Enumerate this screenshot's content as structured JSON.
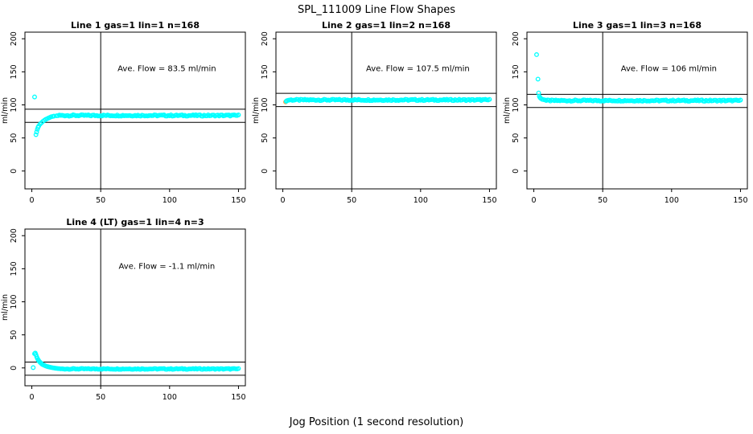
{
  "page": {
    "title": "SPL_111009  Line Flow Shapes",
    "bottom_xlabel": "Jog Position (1 second resolution)"
  },
  "style": {
    "point_color": "#00FFFF",
    "first_point_color": "#FFA040",
    "axis_color": "#000000",
    "background": "#FFFFFF"
  },
  "chart_data": [
    {
      "type": "scatter",
      "title": "Line 1 gas=1 lin=1 n=168",
      "annotation": {
        "text": "Ave. Flow =  83.5  ml/min",
        "x": 98,
        "y": 151
      },
      "ylabel": "ml/min",
      "ave_flow_ml_min": 83.5,
      "xlim": [
        -5,
        155
      ],
      "ylim": [
        -27,
        210
      ],
      "xticks": [
        0,
        50,
        100,
        150
      ],
      "yticks": [
        0,
        50,
        100,
        150,
        200
      ],
      "vline_x": 50,
      "hlines": [
        93.5,
        73.5
      ],
      "points": [
        [
          2,
          112
        ],
        [
          3,
          55
        ],
        [
          3.5,
          59
        ],
        [
          4,
          63
        ],
        [
          4.5,
          66
        ],
        [
          5,
          68
        ],
        [
          6,
          71
        ],
        [
          7,
          73
        ],
        [
          8,
          75
        ],
        [
          9,
          76.5
        ],
        [
          10,
          78
        ],
        [
          11,
          79
        ],
        [
          12,
          80
        ],
        [
          13,
          81
        ],
        [
          14,
          82
        ],
        [
          15,
          82.5
        ],
        [
          16,
          83
        ],
        [
          18,
          83.5
        ]
      ],
      "plateau": {
        "x_from": 19,
        "x_to": 150,
        "x_step": 1,
        "y": 84,
        "jitter": 2
      }
    },
    {
      "type": "scatter",
      "title": "Line 2 gas=1 lin=2 n=168",
      "annotation": {
        "text": "Ave. Flow =  107.5  ml/min",
        "x": 98,
        "y": 151
      },
      "ylabel": "ml/min",
      "ave_flow_ml_min": 107.5,
      "xlim": [
        -5,
        155
      ],
      "ylim": [
        -27,
        210
      ],
      "xticks": [
        0,
        50,
        100,
        150
      ],
      "yticks": [
        0,
        50,
        100,
        150,
        200
      ],
      "vline_x": 50,
      "hlines": [
        117.5,
        97.5
      ],
      "points": [
        [
          2,
          104.5,
          "#FFA040"
        ],
        [
          2.5,
          105.5
        ],
        [
          3,
          106.5
        ],
        [
          4,
          107
        ]
      ],
      "plateau": {
        "x_from": 5,
        "x_to": 150,
        "x_step": 1,
        "y": 107.5,
        "jitter": 2
      }
    },
    {
      "type": "scatter",
      "title": "Line 3 gas=1 lin=3 n=168",
      "annotation": {
        "text": "Ave. Flow =  106  ml/min",
        "x": 98,
        "y": 151
      },
      "ylabel": "ml/min",
      "ave_flow_ml_min": 106,
      "xlim": [
        -5,
        155
      ],
      "ylim": [
        -27,
        210
      ],
      "xticks": [
        0,
        50,
        100,
        150
      ],
      "yticks": [
        0,
        50,
        100,
        150,
        200
      ],
      "vline_x": 50,
      "hlines": [
        116,
        96
      ],
      "points": [
        [
          2,
          176
        ],
        [
          3,
          139
        ],
        [
          3.5,
          118
        ],
        [
          4,
          113
        ],
        [
          4.5,
          111
        ],
        [
          5,
          110
        ],
        [
          6,
          108.5
        ],
        [
          7,
          108
        ],
        [
          8,
          107.5
        ]
      ],
      "plateau": {
        "x_from": 9,
        "x_to": 150,
        "x_step": 1,
        "y": 106.5,
        "jitter": 2
      }
    },
    {
      "type": "scatter",
      "title": "Line 4 (LT) gas=1 lin=4 n=3",
      "annotation": {
        "text": "Ave. Flow =  -1.1  ml/min",
        "x": 98,
        "y": 150
      },
      "ylabel": "ml/min",
      "ave_flow_ml_min": -1.1,
      "xlim": [
        -5,
        155
      ],
      "ylim": [
        -27,
        210
      ],
      "xticks": [
        0,
        50,
        100,
        150
      ],
      "yticks": [
        0,
        50,
        100,
        150,
        200
      ],
      "vline_x": 50,
      "hlines": [
        8.9,
        -11.1
      ],
      "points": [
        [
          1,
          0.5
        ],
        [
          2,
          21.5
        ],
        [
          2.5,
          22.5
        ],
        [
          3,
          20
        ],
        [
          3.5,
          17
        ],
        [
          4,
          14.5
        ],
        [
          4.5,
          12.5
        ],
        [
          5,
          11
        ],
        [
          5.5,
          9.5
        ],
        [
          6,
          8.5
        ],
        [
          6.5,
          7.5
        ],
        [
          7,
          6.5
        ],
        [
          7.5,
          5.5
        ],
        [
          8,
          5
        ],
        [
          9,
          4
        ],
        [
          10,
          3
        ],
        [
          11,
          2.3
        ],
        [
          12,
          1.7
        ],
        [
          13,
          1.2
        ],
        [
          14,
          0.7
        ],
        [
          15,
          0.3
        ],
        [
          16,
          0
        ],
        [
          17,
          -0.4
        ],
        [
          18,
          -0.7
        ],
        [
          19,
          -0.9
        ],
        [
          20,
          -1.1
        ]
      ],
      "plateau": {
        "x_from": 21,
        "x_to": 150,
        "x_step": 1,
        "y": -1.5,
        "jitter": 1.4
      }
    }
  ]
}
